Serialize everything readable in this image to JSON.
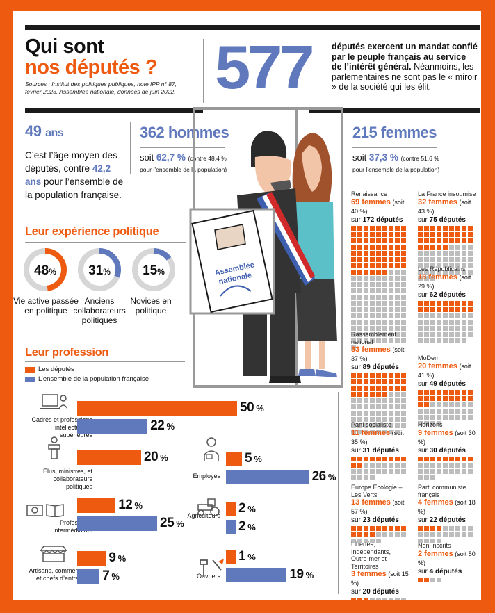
{
  "header": {
    "title_line1": "Qui sont",
    "title_line2": "nos députés ?",
    "sources": "Sources : Institut des politiques publiques, note IPP n° 87, février 2023. Assemblée nationale, données de juin 2022.",
    "big_number": "577",
    "intro_bold": "députés exercent un mandat confié par le peuple français au service de l’intérêt général.",
    "intro_rest": " Néanmoins, les parlementaires ne sont pas le « miroir » de la société qui les élit."
  },
  "age": {
    "value": "49",
    "unit": "ans",
    "text_a": "C’est l’âge moyen des députés, contre ",
    "text_value": "42,2 ans",
    "text_b": " pour l’ensemble de la population française."
  },
  "men": {
    "headline": "362 hommes",
    "soit": "soit",
    "pct": "62,7 %",
    "contre": "(contre 48,4 %",
    "pop": "pour l’ensemble de la population)"
  },
  "women": {
    "headline": "215 femmes",
    "soit": "soit",
    "pct": "37,3 %",
    "contre": "(contre 51,6 %",
    "pop": "pour l’ensemble de la population)"
  },
  "illustration": {
    "ballot_text_1": "Assemblée",
    "ballot_text_2": "nationale"
  },
  "experience": {
    "title": "Leur expérience politique",
    "donuts": [
      {
        "value": 48,
        "label_num": "48",
        "label_pct": "%",
        "caption": "Vie active passée en politique",
        "color": "#ee5a0f"
      },
      {
        "value": 31,
        "label_num": "31",
        "label_pct": "%",
        "caption": "Anciens collaborateurs politiques",
        "color": "#6079bd"
      },
      {
        "value": 15,
        "label_num": "15",
        "label_pct": "%",
        "caption": "Novices en politique",
        "color": "#6079bd"
      }
    ]
  },
  "profession": {
    "title": "Leur profession",
    "legend_deputes": "Les députés",
    "legend_population": "L’ensemble de la population française"
  },
  "chart_data": {
    "type": "bar",
    "title": "Leur profession",
    "unit": "%",
    "series": [
      {
        "name": "Les députés",
        "color": "#ee5a0f",
        "values": [
          50,
          20,
          12,
          9,
          5,
          2,
          1
        ]
      },
      {
        "name": "L’ensemble de la population française",
        "color": "#6079bd",
        "values": [
          22,
          null,
          25,
          7,
          26,
          2,
          19
        ]
      }
    ],
    "categories": [
      "Cadres et professions intellectuelles supérieures",
      "Élus, ministres, et collaborateurs politiques",
      "Professions intermédiaires",
      "Artisans, commerçants et chefs d’entreprise",
      "Employés",
      "Agriculteurs",
      "Ouvriers"
    ]
  },
  "parties": [
    {
      "name": "Renaissance",
      "women": 69,
      "pct": "(soit 40 %)",
      "total": 172
    },
    {
      "name": "La France insoumise",
      "women": 32,
      "pct": "(soit 43 %)",
      "total": 75
    },
    {
      "name": "Les Républicains",
      "women": 18,
      "pct": "(soit 29 %)",
      "total": 62
    },
    {
      "name": "Rassemblement national",
      "women": 33,
      "pct": "(soit 37 %)",
      "total": 89
    },
    {
      "name": "MoDem",
      "women": 20,
      "pct": "(soit 41 %)",
      "total": 49
    },
    {
      "name": "Parti socialiste",
      "women": 11,
      "pct": "(soit 35 %)",
      "total": 31
    },
    {
      "name": "Horizons",
      "women": 9,
      "pct": "(soit 30 %)",
      "total": 30
    },
    {
      "name": "Europe Écologie – Les Verts",
      "women": 13,
      "pct": "(soit 57 %)",
      "total": 23
    },
    {
      "name": "Parti communiste français",
      "women": 4,
      "pct": "(soit 18 %)",
      "total": 22
    },
    {
      "name": "Libertés, Indépendants, Outre-mer et Territoires",
      "women": 3,
      "pct": "(soit 15 %)",
      "total": 20
    },
    {
      "name": "Non-inscrits",
      "women": 2,
      "pct": "(soit 50 %)",
      "total": 4
    }
  ],
  "party_labels": {
    "women_word": "femmes",
    "sur": "sur",
    "deputes_word": "députés"
  },
  "colors": {
    "orange": "#ee5a0f",
    "blue": "#6079bd",
    "grey": "#bdbdbd",
    "dark": "#1b1b1b"
  }
}
